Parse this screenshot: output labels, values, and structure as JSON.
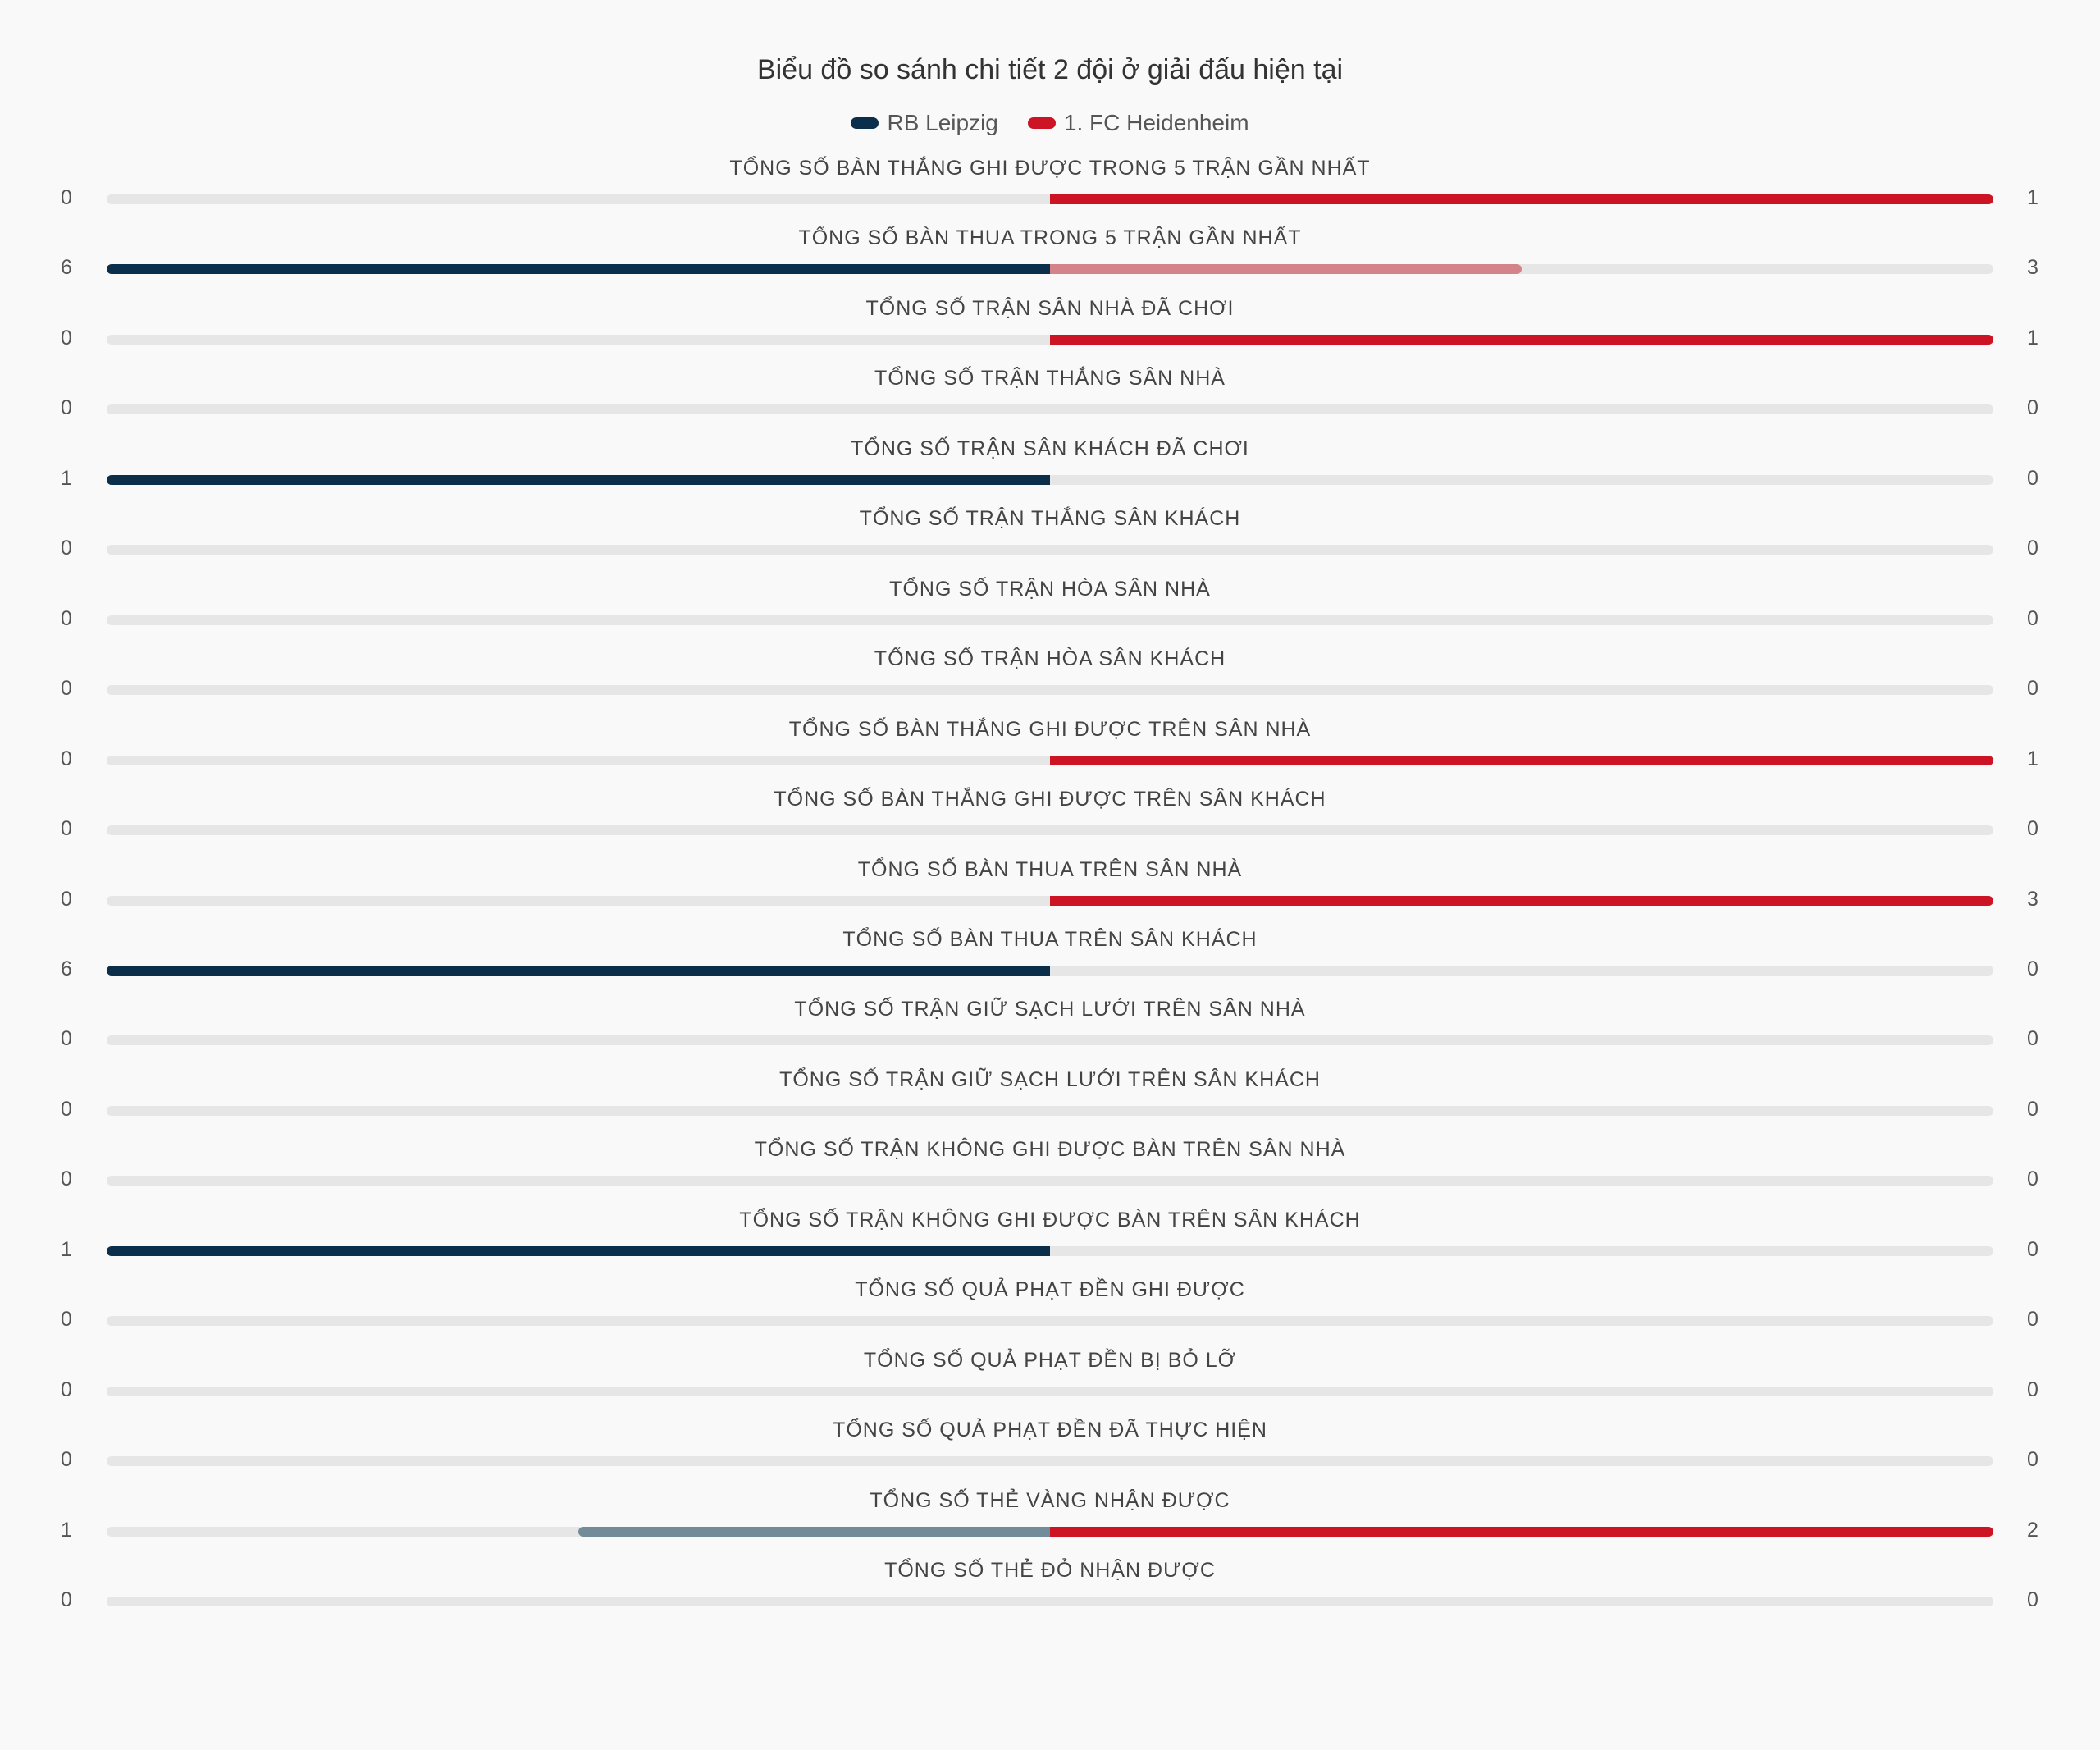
{
  "chart_data": {
    "type": "bar",
    "orientation": "diverging-horizontal",
    "title": "Biểu đồ so sánh chi tiết 2 đội ở giải đấu hiện tại",
    "legend": [
      {
        "name": "RB Leipzig",
        "color": "#0b2f4a"
      },
      {
        "name": "1. FC Heidenheim",
        "color": "#cc1424"
      }
    ],
    "series": [
      {
        "name": "RB Leipzig",
        "color": "#0b2f4a",
        "dim_color": "#738c99"
      },
      {
        "name": "1. FC Heidenheim",
        "color": "#cc1424",
        "dim_color": "#d5838b"
      }
    ],
    "categories": [
      "TỔNG SỐ BÀN THẮNG GHI ĐƯỢC TRONG 5 TRẬN GẦN NHẤT",
      "TỔNG SỐ BÀN THUA TRONG 5 TRẬN GẦN NHẤT",
      "TỔNG SỐ TRẬN SÂN NHÀ ĐÃ CHƠI",
      "TỔNG SỐ TRẬN THẮNG SÂN NHÀ",
      "TỔNG SỐ TRẬN SÂN KHÁCH ĐÃ CHƠI",
      "TỔNG SỐ TRẬN THẮNG SÂN KHÁCH",
      "TỔNG SỐ TRẬN HÒA SÂN NHÀ",
      "TỔNG SỐ TRẬN HÒA SÂN KHÁCH",
      "TỔNG SỐ BÀN THẮNG GHI ĐƯỢC TRÊN SÂN NHÀ",
      "TỔNG SỐ BÀN THẮNG GHI ĐƯỢC TRÊN SÂN KHÁCH",
      "TỔNG SỐ BÀN THUA TRÊN SÂN NHÀ",
      "TỔNG SỐ BÀN THUA TRÊN SÂN KHÁCH",
      "TỔNG SỐ TRẬN GIỮ SẠCH LƯỚI TRÊN SÂN NHÀ",
      "TỔNG SỐ TRẬN GIỮ SẠCH LƯỚI TRÊN SÂN KHÁCH",
      "TỔNG SỐ TRẬN KHÔNG GHI ĐƯỢC BÀN TRÊN SÂN NHÀ",
      "TỔNG SỐ TRẬN KHÔNG GHI ĐƯỢC BÀN TRÊN SÂN KHÁCH",
      "TỔNG SỐ QUẢ PHẠT ĐỀN GHI ĐƯỢC",
      "TỔNG SỐ QUẢ PHẠT ĐỀN BỊ BỎ LỠ",
      "TỔNG SỐ QUẢ PHẠT ĐỀN ĐÃ THỰC HIỆN",
      "TỔNG SỐ THẺ VÀNG NHẬN ĐƯỢC",
      "TỔNG SỐ THẺ ĐỎ NHẬN ĐƯỢC"
    ],
    "rb_leipzig": [
      0,
      6,
      0,
      0,
      1,
      0,
      0,
      0,
      0,
      0,
      0,
      6,
      0,
      0,
      0,
      1,
      0,
      0,
      0,
      1,
      0
    ],
    "heidenheim": [
      1,
      3,
      1,
      0,
      0,
      0,
      0,
      0,
      1,
      0,
      3,
      0,
      0,
      0,
      0,
      0,
      0,
      0,
      0,
      2,
      0
    ],
    "note": "Each row scaled independently: larger value fills its half fully; the smaller side uses the dimmed team colour."
  }
}
